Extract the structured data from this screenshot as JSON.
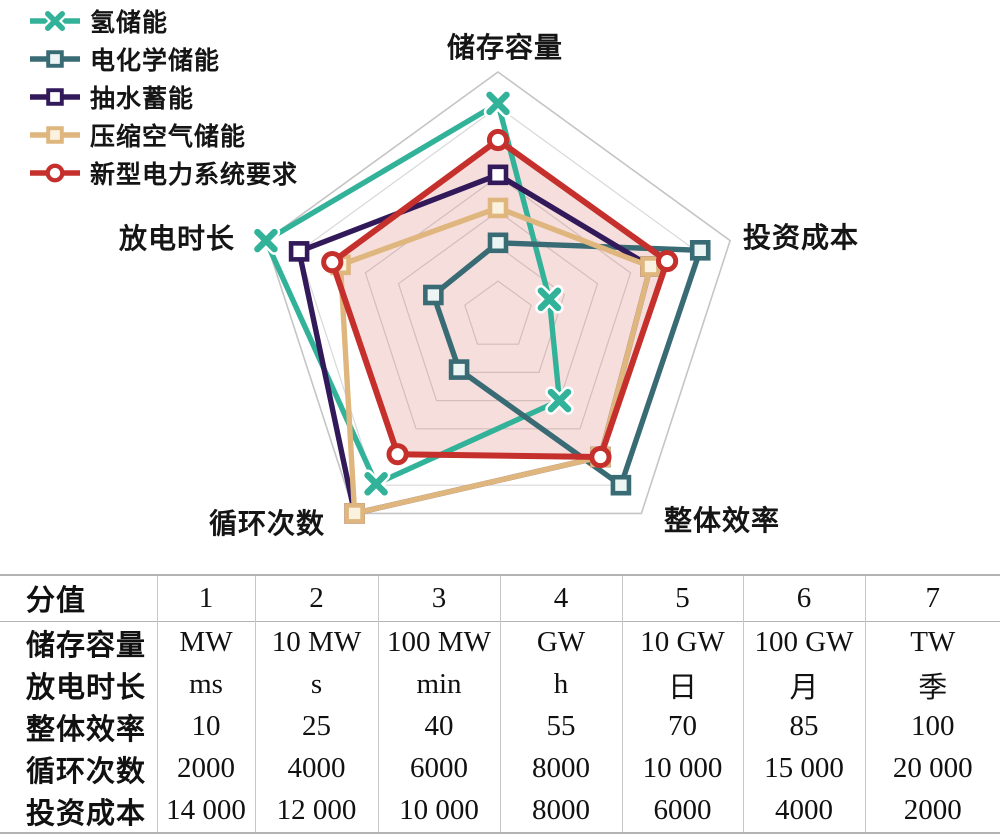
{
  "chart_data": {
    "type": "radar",
    "axes": [
      "储存容量",
      "投资成本",
      "整体效率",
      "循环次数",
      "放电时长"
    ],
    "scale": {
      "min": 0,
      "max": 7,
      "rings": 7
    },
    "grid_color": "#d8d8d8",
    "outer_grid_color": "#c5c5c5",
    "series": [
      {
        "name": "氢储能",
        "color": "#32b299",
        "marker": "x",
        "marker_fill": "#ffffff",
        "values": [
          6.1,
          1.55,
          3.0,
          5.95,
          7.0
        ]
      },
      {
        "name": "电化学储能",
        "color": "#386b74",
        "marker": "square",
        "marker_fill": "#ecf5f4",
        "values": [
          2.1,
          6.1,
          6.0,
          1.9,
          1.95
        ]
      },
      {
        "name": "抽水蓄能",
        "color": "#32195a",
        "marker": "square",
        "marker_fill": "#ffffff",
        "values": [
          4.05,
          4.6,
          5.0,
          7.0,
          6.0
        ]
      },
      {
        "name": "压缩空气储能",
        "color": "#dfb67e",
        "marker": "square",
        "marker_fill": "#faf2df",
        "values": [
          3.1,
          4.6,
          5.0,
          7.0,
          4.75
        ]
      },
      {
        "name": "新型电力系统要求",
        "color": "#c5302c",
        "marker": "circle",
        "marker_fill": "#ffffff",
        "values": [
          5.05,
          5.1,
          5.0,
          4.9,
          5.0
        ],
        "area_fill": "rgba(197,48,44,0.16)"
      }
    ]
  },
  "table": {
    "header": {
      "label": "分值",
      "values": [
        "1",
        "2",
        "3",
        "4",
        "5",
        "6",
        "7"
      ]
    },
    "rows": [
      {
        "label": "储存容量",
        "values": [
          "MW",
          "10 MW",
          "100 MW",
          "GW",
          "10 GW",
          "100 GW",
          "TW"
        ]
      },
      {
        "label": "放电时长",
        "values": [
          "ms",
          "s",
          "min",
          "h",
          "日",
          "月",
          "季"
        ]
      },
      {
        "label": "整体效率",
        "values": [
          "10",
          "25",
          "40",
          "55",
          "70",
          "85",
          "100"
        ]
      },
      {
        "label": "循环次数",
        "values": [
          "2000",
          "4000",
          "6000",
          "8000",
          "10 000",
          "15 000",
          "20 000"
        ]
      },
      {
        "label": "投资成本",
        "values": [
          "14 000",
          "12 000",
          "10 000",
          "8000",
          "6000",
          "4000",
          "2000"
        ]
      }
    ]
  }
}
